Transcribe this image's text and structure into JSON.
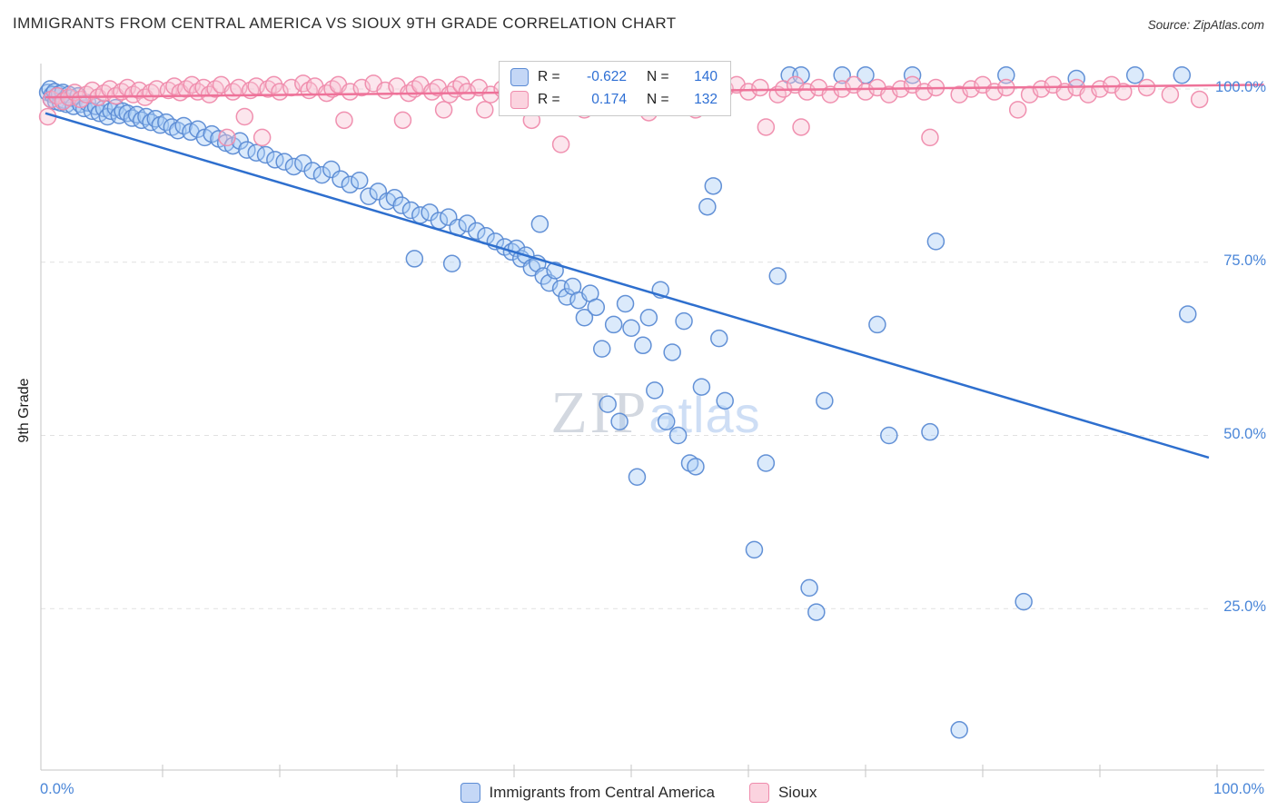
{
  "header": {
    "title": "IMMIGRANTS FROM CENTRAL AMERICA VS SIOUX 9TH GRADE CORRELATION CHART",
    "source": "Source: ZipAtlas.com"
  },
  "axes": {
    "y_label": "9th Grade",
    "x_min_label": "0.0%",
    "x_max_label": "100.0%",
    "y_tick_labels": [
      "100.0%",
      "75.0%",
      "50.0%",
      "25.0%"
    ]
  },
  "legend_box": {
    "rows": [
      {
        "series": "Immigrants from Central America",
        "r_label": "R =",
        "r_value": "-0.622",
        "n_label": "N =",
        "n_value": "140"
      },
      {
        "series": "Sioux",
        "r_label": "R =",
        "r_value": "0.174",
        "n_label": "N =",
        "n_value": "132"
      }
    ]
  },
  "bottom_legend": {
    "items": [
      {
        "label": "Immigrants from Central America",
        "color": "#a9ccf5",
        "border": "#5b8bd4"
      },
      {
        "label": "Sioux",
        "color": "#f9c4d4",
        "border": "#ef8bac"
      }
    ]
  },
  "watermark": {
    "zip": "ZIP",
    "atlas": "atlas"
  },
  "chart_data": {
    "type": "scatter",
    "title": "IMMIGRANTS FROM CENTRAL AMERICA VS SIOUX 9TH GRADE CORRELATION CHART",
    "xlabel": "",
    "ylabel": "9th Grade",
    "xlim": [
      0,
      1.04
    ],
    "ylim": [
      0,
      1.05
    ],
    "x_tick_labels": [
      "0.0%",
      "100.0%"
    ],
    "y_tick_labels": [
      "100.0%",
      "75.0%",
      "50.0%",
      "25.0%"
    ],
    "y_gridlines": [
      1.0,
      0.75,
      0.5,
      0.25
    ],
    "grid": true,
    "legend_position": "bottom-center",
    "series": [
      {
        "name": "Immigrants from Central America",
        "R": -0.622,
        "N": 140,
        "color": "#5b8bd4",
        "fill": "#a9ccf5",
        "points": [
          [
            0.002,
            0.995
          ],
          [
            0.004,
            1.0
          ],
          [
            0.005,
            0.985
          ],
          [
            0.006,
            0.992
          ],
          [
            0.008,
            0.996
          ],
          [
            0.009,
            0.982
          ],
          [
            0.01,
            0.99
          ],
          [
            0.012,
            0.993
          ],
          [
            0.013,
            0.98
          ],
          [
            0.015,
            0.995
          ],
          [
            0.016,
            0.984
          ],
          [
            0.018,
            0.978
          ],
          [
            0.02,
            0.992
          ],
          [
            0.022,
            0.987
          ],
          [
            0.024,
            0.975
          ],
          [
            0.028,
            0.99
          ],
          [
            0.03,
            0.978
          ],
          [
            0.033,
            0.972
          ],
          [
            0.036,
            0.98
          ],
          [
            0.04,
            0.968
          ],
          [
            0.043,
            0.975
          ],
          [
            0.046,
            0.965
          ],
          [
            0.05,
            0.972
          ],
          [
            0.053,
            0.96
          ],
          [
            0.056,
            0.968
          ],
          [
            0.06,
            0.973
          ],
          [
            0.063,
            0.962
          ],
          [
            0.066,
            0.968
          ],
          [
            0.07,
            0.965
          ],
          [
            0.074,
            0.958
          ],
          [
            0.078,
            0.963
          ],
          [
            0.082,
            0.955
          ],
          [
            0.086,
            0.96
          ],
          [
            0.09,
            0.952
          ],
          [
            0.094,
            0.957
          ],
          [
            0.098,
            0.948
          ],
          [
            0.103,
            0.952
          ],
          [
            0.108,
            0.945
          ],
          [
            0.113,
            0.94
          ],
          [
            0.118,
            0.947
          ],
          [
            0.124,
            0.938
          ],
          [
            0.13,
            0.942
          ],
          [
            0.136,
            0.93
          ],
          [
            0.142,
            0.935
          ],
          [
            0.148,
            0.928
          ],
          [
            0.154,
            0.922
          ],
          [
            0.16,
            0.918
          ],
          [
            0.166,
            0.925
          ],
          [
            0.172,
            0.912
          ],
          [
            0.18,
            0.908
          ],
          [
            0.188,
            0.905
          ],
          [
            0.196,
            0.898
          ],
          [
            0.204,
            0.895
          ],
          [
            0.212,
            0.888
          ],
          [
            0.22,
            0.893
          ],
          [
            0.228,
            0.882
          ],
          [
            0.236,
            0.876
          ],
          [
            0.244,
            0.884
          ],
          [
            0.252,
            0.87
          ],
          [
            0.26,
            0.862
          ],
          [
            0.268,
            0.868
          ],
          [
            0.276,
            0.845
          ],
          [
            0.284,
            0.852
          ],
          [
            0.292,
            0.838
          ],
          [
            0.298,
            0.843
          ],
          [
            0.304,
            0.832
          ],
          [
            0.312,
            0.825
          ],
          [
            0.32,
            0.818
          ],
          [
            0.328,
            0.822
          ],
          [
            0.336,
            0.81
          ],
          [
            0.344,
            0.815
          ],
          [
            0.352,
            0.8
          ],
          [
            0.36,
            0.806
          ],
          [
            0.368,
            0.795
          ],
          [
            0.376,
            0.788
          ],
          [
            0.384,
            0.78
          ],
          [
            0.392,
            0.772
          ],
          [
            0.398,
            0.765
          ],
          [
            0.315,
            0.755
          ],
          [
            0.347,
            0.748
          ],
          [
            0.402,
            0.77
          ],
          [
            0.406,
            0.755
          ],
          [
            0.41,
            0.76
          ],
          [
            0.415,
            0.742
          ],
          [
            0.42,
            0.748
          ],
          [
            0.422,
            0.805
          ],
          [
            0.425,
            0.73
          ],
          [
            0.43,
            0.72
          ],
          [
            0.435,
            0.738
          ],
          [
            0.44,
            0.712
          ],
          [
            0.445,
            0.7
          ],
          [
            0.45,
            0.715
          ],
          [
            0.455,
            0.695
          ],
          [
            0.46,
            0.67
          ],
          [
            0.465,
            0.705
          ],
          [
            0.47,
            0.685
          ],
          [
            0.475,
            0.625
          ],
          [
            0.48,
            0.545
          ],
          [
            0.485,
            0.66
          ],
          [
            0.49,
            0.52
          ],
          [
            0.495,
            0.69
          ],
          [
            0.5,
            0.655
          ],
          [
            0.505,
            0.44
          ],
          [
            0.51,
            0.63
          ],
          [
            0.515,
            0.67
          ],
          [
            0.52,
            0.565
          ],
          [
            0.525,
            0.71
          ],
          [
            0.53,
            0.52
          ],
          [
            0.535,
            0.62
          ],
          [
            0.54,
            0.5
          ],
          [
            0.545,
            0.665
          ],
          [
            0.55,
            0.46
          ],
          [
            0.555,
            0.455
          ],
          [
            0.56,
            0.57
          ],
          [
            0.565,
            0.83
          ],
          [
            0.57,
            0.86
          ],
          [
            0.575,
            0.64
          ],
          [
            0.58,
            0.55
          ],
          [
            0.605,
            0.335
          ],
          [
            0.615,
            0.46
          ],
          [
            0.625,
            0.73
          ],
          [
            0.635,
            1.02
          ],
          [
            0.645,
            1.02
          ],
          [
            0.652,
            0.28
          ],
          [
            0.658,
            0.245
          ],
          [
            0.665,
            0.55
          ],
          [
            0.68,
            1.02
          ],
          [
            0.7,
            1.02
          ],
          [
            0.71,
            0.66
          ],
          [
            0.72,
            0.5
          ],
          [
            0.74,
            1.02
          ],
          [
            0.755,
            0.505
          ],
          [
            0.76,
            0.78
          ],
          [
            0.78,
            0.075
          ],
          [
            0.82,
            1.02
          ],
          [
            0.835,
            0.26
          ],
          [
            0.88,
            1.015
          ],
          [
            0.93,
            1.02
          ],
          [
            0.97,
            1.02
          ],
          [
            0.975,
            0.675
          ]
        ]
      },
      {
        "name": "Sioux",
        "R": 0.174,
        "N": 132,
        "color": "#ef8bac",
        "fill": "#f9c4d4",
        "points": [
          [
            0.002,
            0.96
          ],
          [
            0.005,
            0.985
          ],
          [
            0.01,
            0.99
          ],
          [
            0.015,
            0.982
          ],
          [
            0.02,
            0.988
          ],
          [
            0.025,
            0.995
          ],
          [
            0.03,
            0.985
          ],
          [
            0.035,
            0.992
          ],
          [
            0.04,
            0.998
          ],
          [
            0.045,
            0.988
          ],
          [
            0.05,
            0.994
          ],
          [
            0.055,
            1.0
          ],
          [
            0.06,
            0.99
          ],
          [
            0.065,
            0.996
          ],
          [
            0.07,
            1.002
          ],
          [
            0.075,
            0.992
          ],
          [
            0.08,
            0.998
          ],
          [
            0.085,
            0.988
          ],
          [
            0.09,
            0.995
          ],
          [
            0.095,
            1.0
          ],
          [
            0.105,
            0.998
          ],
          [
            0.11,
            1.004
          ],
          [
            0.115,
            0.995
          ],
          [
            0.12,
            1.0
          ],
          [
            0.125,
            1.006
          ],
          [
            0.13,
            0.996
          ],
          [
            0.135,
            1.002
          ],
          [
            0.14,
            0.992
          ],
          [
            0.145,
            1.0
          ],
          [
            0.15,
            1.006
          ],
          [
            0.155,
            0.93
          ],
          [
            0.16,
            0.996
          ],
          [
            0.165,
            1.002
          ],
          [
            0.17,
            0.96
          ],
          [
            0.175,
            0.998
          ],
          [
            0.18,
            1.004
          ],
          [
            0.185,
            0.93
          ],
          [
            0.19,
            1.0
          ],
          [
            0.195,
            1.006
          ],
          [
            0.2,
            0.996
          ],
          [
            0.21,
            1.002
          ],
          [
            0.22,
            1.008
          ],
          [
            0.225,
            0.998
          ],
          [
            0.23,
            1.004
          ],
          [
            0.24,
            0.994
          ],
          [
            0.245,
            1.0
          ],
          [
            0.25,
            1.006
          ],
          [
            0.255,
            0.955
          ],
          [
            0.26,
            0.996
          ],
          [
            0.27,
            1.002
          ],
          [
            0.28,
            1.008
          ],
          [
            0.29,
            0.998
          ],
          [
            0.3,
            1.004
          ],
          [
            0.305,
            0.955
          ],
          [
            0.31,
            0.994
          ],
          [
            0.315,
            1.0
          ],
          [
            0.32,
            1.006
          ],
          [
            0.33,
            0.996
          ],
          [
            0.335,
            1.002
          ],
          [
            0.34,
            0.97
          ],
          [
            0.345,
            0.992
          ],
          [
            0.35,
            1.0
          ],
          [
            0.355,
            1.006
          ],
          [
            0.36,
            0.996
          ],
          [
            0.37,
            1.002
          ],
          [
            0.375,
            0.97
          ],
          [
            0.38,
            0.992
          ],
          [
            0.39,
            1.0
          ],
          [
            0.4,
            1.006
          ],
          [
            0.405,
            0.996
          ],
          [
            0.41,
            1.002
          ],
          [
            0.415,
            0.955
          ],
          [
            0.42,
            0.992
          ],
          [
            0.43,
            1.0
          ],
          [
            0.435,
            1.006
          ],
          [
            0.44,
            0.92
          ],
          [
            0.45,
            0.996
          ],
          [
            0.455,
            1.002
          ],
          [
            0.46,
            0.97
          ],
          [
            0.47,
            0.992
          ],
          [
            0.48,
            1.0
          ],
          [
            0.49,
            1.006
          ],
          [
            0.5,
            0.996
          ],
          [
            0.51,
            1.002
          ],
          [
            0.515,
            0.966
          ],
          [
            0.52,
            0.992
          ],
          [
            0.53,
            1.0
          ],
          [
            0.54,
            1.006
          ],
          [
            0.55,
            0.996
          ],
          [
            0.555,
            0.97
          ],
          [
            0.56,
            1.002
          ],
          [
            0.57,
            0.992
          ],
          [
            0.58,
            1.0
          ],
          [
            0.59,
            1.006
          ],
          [
            0.6,
            0.996
          ],
          [
            0.61,
            1.002
          ],
          [
            0.615,
            0.945
          ],
          [
            0.625,
            0.992
          ],
          [
            0.63,
            1.0
          ],
          [
            0.64,
            1.006
          ],
          [
            0.645,
            0.945
          ],
          [
            0.65,
            0.996
          ],
          [
            0.66,
            1.002
          ],
          [
            0.67,
            0.992
          ],
          [
            0.68,
            1.0
          ],
          [
            0.69,
            1.006
          ],
          [
            0.7,
            0.996
          ],
          [
            0.71,
            1.002
          ],
          [
            0.72,
            0.992
          ],
          [
            0.73,
            1.0
          ],
          [
            0.74,
            1.006
          ],
          [
            0.75,
            0.996
          ],
          [
            0.755,
            0.93
          ],
          [
            0.76,
            1.002
          ],
          [
            0.78,
            0.992
          ],
          [
            0.79,
            1.0
          ],
          [
            0.8,
            1.006
          ],
          [
            0.81,
            0.996
          ],
          [
            0.82,
            1.002
          ],
          [
            0.83,
            0.97
          ],
          [
            0.84,
            0.992
          ],
          [
            0.85,
            1.0
          ],
          [
            0.86,
            1.006
          ],
          [
            0.87,
            0.996
          ],
          [
            0.88,
            1.002
          ],
          [
            0.89,
            0.992
          ],
          [
            0.9,
            1.0
          ],
          [
            0.91,
            1.006
          ],
          [
            0.92,
            0.996
          ],
          [
            0.94,
            1.002
          ],
          [
            0.96,
            0.992
          ],
          [
            0.985,
            0.985
          ]
        ]
      }
    ],
    "trend_lines": [
      {
        "series": "Immigrants from Central America",
        "color": "#2e6fce",
        "x1": 0,
        "y1": 0.965,
        "x2": 0.993,
        "y2": 0.468
      },
      {
        "series": "Sioux",
        "color": "#ee7299",
        "x1": 0,
        "y1": 0.988,
        "x2": 1.04,
        "y2": 1.006
      }
    ]
  }
}
